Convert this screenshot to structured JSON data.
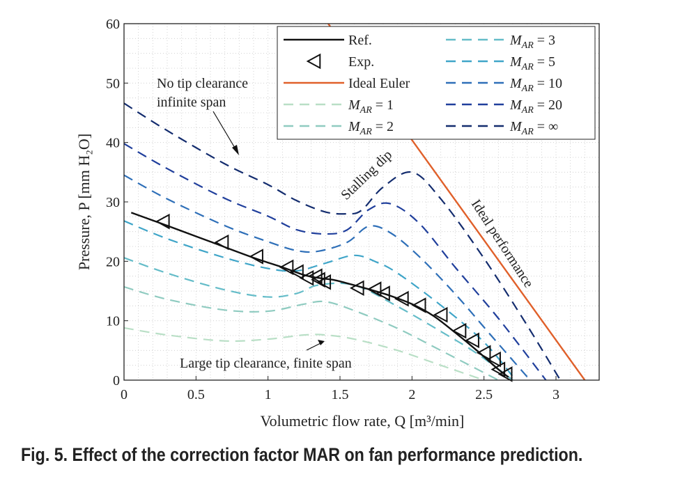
{
  "caption": "Fig. 5. Effect of the correction factor MAR on fan performance prediction.",
  "chart_data": {
    "type": "line",
    "xlabel": "Volumetric flow rate, Q [m³/min]",
    "ylabel": "Pressure, P [mm H₂O]",
    "xlim": [
      0,
      3.3
    ],
    "ylim": [
      0,
      60
    ],
    "xticks": [
      "0",
      "0.5",
      "1",
      "1.5",
      "2",
      "2.5",
      "3"
    ],
    "xtick_values": [
      0,
      0.5,
      1,
      1.5,
      2,
      2.5,
      3
    ],
    "yticks": [
      "0",
      "10",
      "20",
      "30",
      "40",
      "50",
      "60"
    ],
    "ytick_values": [
      0,
      10,
      20,
      30,
      40,
      50,
      60
    ],
    "grid": "minor dotted",
    "legend_position": "top-right",
    "series": [
      {
        "name": "Ref.",
        "style": "solid",
        "color": "#111111",
        "x": [
          0.05,
          0.3,
          0.6,
          0.9,
          1.1,
          1.25,
          1.35,
          1.45,
          1.55,
          1.7,
          1.85,
          2.0,
          2.15,
          2.3,
          2.45,
          2.6,
          2.67
        ],
        "y": [
          28.2,
          26.0,
          23.3,
          20.6,
          19.0,
          17.7,
          17.2,
          16.9,
          16.3,
          15.3,
          14.2,
          12.8,
          10.8,
          8.0,
          5.0,
          1.8,
          0.5
        ]
      },
      {
        "name": "Exp.",
        "style": "marker",
        "color": "#111111",
        "x": [
          0.27,
          0.68,
          0.92,
          1.13,
          1.2,
          1.27,
          1.33,
          1.35,
          1.39,
          1.62,
          1.74,
          1.8,
          1.93,
          2.05,
          2.2,
          2.33,
          2.42,
          2.5,
          2.57,
          2.6,
          2.65
        ],
        "y": [
          26.7,
          23.2,
          20.8,
          19.0,
          18.2,
          17.2,
          17.5,
          16.9,
          16.5,
          15.5,
          15.3,
          14.6,
          13.7,
          12.6,
          11.0,
          8.3,
          6.7,
          4.6,
          3.5,
          1.8,
          1.0
        ]
      },
      {
        "name": "Ideal Euler",
        "style": "solid",
        "color": "#e0602a",
        "x": [
          1.24,
          3.2
        ],
        "y": [
          66,
          0
        ]
      },
      {
        "name": "M_AR = 1",
        "style": "dashed",
        "color": "#b9dfc6",
        "x": [
          0.0,
          0.3,
          0.7,
          1.0,
          1.25,
          1.4,
          1.6,
          1.9,
          2.2,
          2.5
        ],
        "y": [
          8.8,
          7.6,
          6.6,
          6.9,
          7.6,
          7.6,
          6.9,
          5.0,
          2.5,
          0.0
        ]
      },
      {
        "name": "M_AR = 2",
        "style": "dashed",
        "color": "#8fcbc0",
        "x": [
          0.0,
          0.3,
          0.7,
          1.0,
          1.25,
          1.4,
          1.6,
          1.9,
          2.2,
          2.4,
          2.6
        ],
        "y": [
          15.7,
          13.6,
          11.8,
          11.6,
          12.8,
          13.2,
          11.7,
          8.7,
          5.0,
          2.5,
          0.0
        ]
      },
      {
        "name": "M_AR = 3",
        "style": "dashed",
        "color": "#64bcc8",
        "x": [
          0.0,
          0.3,
          0.7,
          1.0,
          1.2,
          1.35,
          1.6,
          1.9,
          2.2,
          2.45,
          2.7
        ],
        "y": [
          20.6,
          18.0,
          15.2,
          14.0,
          14.6,
          16.0,
          16.0,
          12.4,
          8.2,
          4.5,
          0.0
        ]
      },
      {
        "name": "M_AR = 5",
        "style": "dashed",
        "color": "#3fa5c8",
        "x": [
          0.0,
          0.3,
          0.7,
          1.0,
          1.2,
          1.4,
          1.6,
          1.75,
          1.9,
          2.2,
          2.5,
          2.72
        ],
        "y": [
          26.8,
          23.8,
          20.6,
          18.8,
          18.4,
          19.7,
          21.0,
          19.9,
          18.0,
          12.6,
          6.4,
          0.0
        ]
      },
      {
        "name": "M_AR = 10",
        "style": "dashed",
        "color": "#2e6fb8",
        "x": [
          0.0,
          0.3,
          0.7,
          1.0,
          1.2,
          1.35,
          1.55,
          1.7,
          1.85,
          2.05,
          2.3,
          2.55,
          2.82
        ],
        "y": [
          34.5,
          30.5,
          26.0,
          23.3,
          21.8,
          21.7,
          23.2,
          25.9,
          24.8,
          20.8,
          14.5,
          7.5,
          0.0
        ]
      },
      {
        "name": "M_AR = 20",
        "style": "dashed",
        "color": "#203f9c",
        "x": [
          0.0,
          0.3,
          0.7,
          1.0,
          1.2,
          1.4,
          1.55,
          1.7,
          1.85,
          2.05,
          2.3,
          2.6,
          2.93
        ],
        "y": [
          39.8,
          35.6,
          30.6,
          27.6,
          25.3,
          24.6,
          25.3,
          28.7,
          29.7,
          26.4,
          19.0,
          10.4,
          0.0
        ]
      },
      {
        "name": "M_AR = ∞",
        "style": "dashed",
        "color": "#132c6e",
        "x": [
          0.0,
          0.3,
          0.7,
          1.0,
          1.2,
          1.4,
          1.55,
          1.65,
          1.8,
          2.0,
          2.2,
          2.5,
          2.8,
          3.03
        ],
        "y": [
          46.6,
          42.0,
          36.4,
          32.9,
          30.2,
          28.3,
          28.0,
          28.6,
          32.5,
          35.0,
          30.5,
          20.5,
          9.2,
          0.0
        ]
      }
    ],
    "legend": {
      "left": [
        {
          "label": "Ref.",
          "series": "Ref."
        },
        {
          "label": "Exp.",
          "series": "Exp."
        },
        {
          "label": "Ideal Euler",
          "series": "Ideal Euler"
        },
        {
          "label": "M_AR = 1",
          "series": "M_AR = 1"
        },
        {
          "label": "M_AR = 2",
          "series": "M_AR = 2"
        }
      ],
      "right": [
        {
          "label": "M_AR = 3",
          "series": "M_AR = 3"
        },
        {
          "label": "M_AR = 5",
          "series": "M_AR = 5"
        },
        {
          "label": "M_AR = 10",
          "series": "M_AR = 10"
        },
        {
          "label": "M_AR = 20",
          "series": "M_AR = 20"
        },
        {
          "label": "M_AR = ∞",
          "series": "M_AR = ∞"
        }
      ]
    },
    "annotations": [
      {
        "id": "no-tip",
        "lines": [
          "No tip clearance",
          "infinite span"
        ]
      },
      {
        "id": "large-tip",
        "lines": [
          "Large tip clearance, finite span"
        ]
      },
      {
        "id": "stalling",
        "lines": [
          "Stalling dip"
        ]
      },
      {
        "id": "ideal",
        "lines": [
          "Ideal performance"
        ]
      }
    ]
  }
}
